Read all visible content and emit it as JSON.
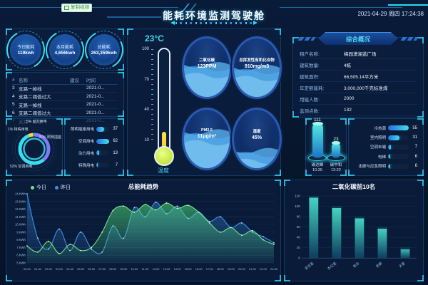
{
  "header": {
    "badge": "复制视频",
    "title": "能耗环境监测驾驶舱",
    "datetime": "2021-04-29 周四 17:24:38"
  },
  "energy_stats": [
    {
      "label": "今日能耗",
      "value": "119kwh"
    },
    {
      "label": "本月能耗",
      "value": "4,656kwh"
    },
    {
      "label": "总能耗",
      "value": "263,359kwh"
    }
  ],
  "alarm_table": {
    "headers": [
      "#",
      "名称",
      "建议",
      "时间"
    ],
    "rows": [
      [
        "3",
        "支路一掉线",
        "2021-0..."
      ],
      [
        "4",
        "支路二阈值过大",
        "2021-0..."
      ],
      [
        "5",
        "支路一掉线",
        "2021-0..."
      ],
      [
        "6",
        "支路二阈值过大",
        "2021-0..."
      ],
      [
        "7",
        "支路一掉线",
        "2021-0..."
      ]
    ]
  },
  "energy_pie": {
    "type": "pie",
    "slices": [
      {
        "label": "照明插座",
        "pct": 37,
        "color": "#7f7af5"
      },
      {
        "label": "空调用电",
        "pct": 52,
        "color": "#35def0"
      },
      {
        "label": "动力用电",
        "pct": 5,
        "color": "#f5d63c"
      },
      {
        "label": "特殊用电",
        "pct": 1,
        "color": "#2f7fe8"
      }
    ],
    "callouts": [
      {
        "pos": "top",
        "text": "5% 动力用电"
      },
      {
        "pos": "left",
        "text": "1% 特殊用电"
      },
      {
        "pos": "right",
        "text": "37% 照明插座"
      },
      {
        "pos": "bottom",
        "text": "52% 空调用电"
      }
    ]
  },
  "classification_bars": {
    "type": "bar",
    "max": 62,
    "items": [
      {
        "label": "照明插座用电",
        "value": 37
      },
      {
        "label": "空调用电",
        "value": 62
      },
      {
        "label": "动力用电",
        "value": 13
      },
      {
        "label": "特殊用电",
        "value": 7
      }
    ]
  },
  "environment": {
    "temperature": {
      "value": "23°C",
      "label": "温度",
      "ticks": [
        100,
        70,
        40,
        10
      ]
    },
    "gauges": [
      {
        "label": "二氧化碳",
        "value": "123PPM",
        "fill": 0.55
      },
      {
        "label": "总挥发性有机化合物",
        "value": "910mg/m3",
        "fill": 0.5
      },
      {
        "label": "PM2.5",
        "value": "11μg/m³",
        "fill": 0.62
      },
      {
        "label": "湿度",
        "value": "45%",
        "fill": 0.3
      }
    ]
  },
  "overview": {
    "title": "综合概况",
    "rows": [
      {
        "label": "租户名称:",
        "value": "梅园潇湘蓝广场"
      },
      {
        "label": "建筑数量:",
        "value": "4栋"
      },
      {
        "label": "建筑面积:",
        "value": "66,505.14平方米"
      },
      {
        "label": "年定额能耗:",
        "value": "3,000,000千克标准煤"
      },
      {
        "label": "用能人数:",
        "value": "2000"
      },
      {
        "label": "监测点数:",
        "value": "132"
      }
    ]
  },
  "carbon": {
    "items": [
      {
        "value": 111,
        "label": "碳达峰",
        "time": "10:35"
      },
      {
        "value": 23,
        "label": "碳中和",
        "time": "13:22"
      }
    ]
  },
  "subsystem_bars": {
    "type": "bar",
    "max": 55,
    "items": [
      {
        "label": "冷热源",
        "value": 55
      },
      {
        "label": "室内照明",
        "value": 31
      },
      {
        "label": "空调末端",
        "value": 7
      },
      {
        "label": "电梯",
        "value": 6
      },
      {
        "label": "走廊与应急照明",
        "value": 6
      }
    ]
  },
  "trend_chart": {
    "type": "line",
    "title": "总能耗趋势",
    "unit": "KWh",
    "legend": [
      {
        "label": "今日",
        "color": "#6fe08a"
      },
      {
        "label": "昨日",
        "color": "#3f8fe8"
      }
    ],
    "x": [
      "00:00",
      "01:00",
      "02:00",
      "03:00",
      "04:00",
      "05:00",
      "06:00",
      "07:00",
      "08:00",
      "09:00",
      "10:00",
      "11:00",
      "12:00",
      "13:00",
      "14:00",
      "15:00",
      "16:00",
      "17:00",
      "18:00",
      "19:00",
      "20:00",
      "21:00",
      "22:00",
      "23:00"
    ],
    "ylim": [
      5,
      14
    ],
    "yticks": [
      14,
      13,
      12,
      11,
      10,
      9,
      8,
      7,
      6,
      5
    ],
    "series": [
      {
        "name": "今日",
        "color": "#6fe08a",
        "values": [
          7.2,
          6.4,
          7.8,
          6.2,
          7.4,
          6.6,
          7.0,
          9.0,
          11.8,
          12.4,
          11.6,
          12.6,
          11.9,
          12.8,
          12.1,
          12.5,
          11.6,
          10.2,
          9.0,
          9.6,
          8.6,
          9.2,
          8.0,
          7.4
        ]
      },
      {
        "name": "昨日",
        "color": "#3f8fe8",
        "values": [
          14.0,
          8.2,
          6.8,
          9.4,
          6.6,
          9.0,
          6.8,
          6.4,
          9.8,
          8.2,
          12.2,
          11.0,
          12.9,
          11.4,
          12.4,
          10.8,
          11.6,
          10.4,
          11.0,
          9.6,
          10.2,
          9.0,
          8.4,
          7.6
        ]
      }
    ]
  },
  "co2_chart": {
    "type": "bar",
    "title": "二氧化碳前10名",
    "categories": [
      "会议室",
      "办公室",
      "前台",
      "走廊",
      "大堂"
    ],
    "values": [
      120,
      100,
      80,
      60,
      20
    ],
    "ylim": [
      0,
      120
    ],
    "yticks": [
      0,
      20,
      40,
      60,
      80,
      100,
      120
    ]
  }
}
